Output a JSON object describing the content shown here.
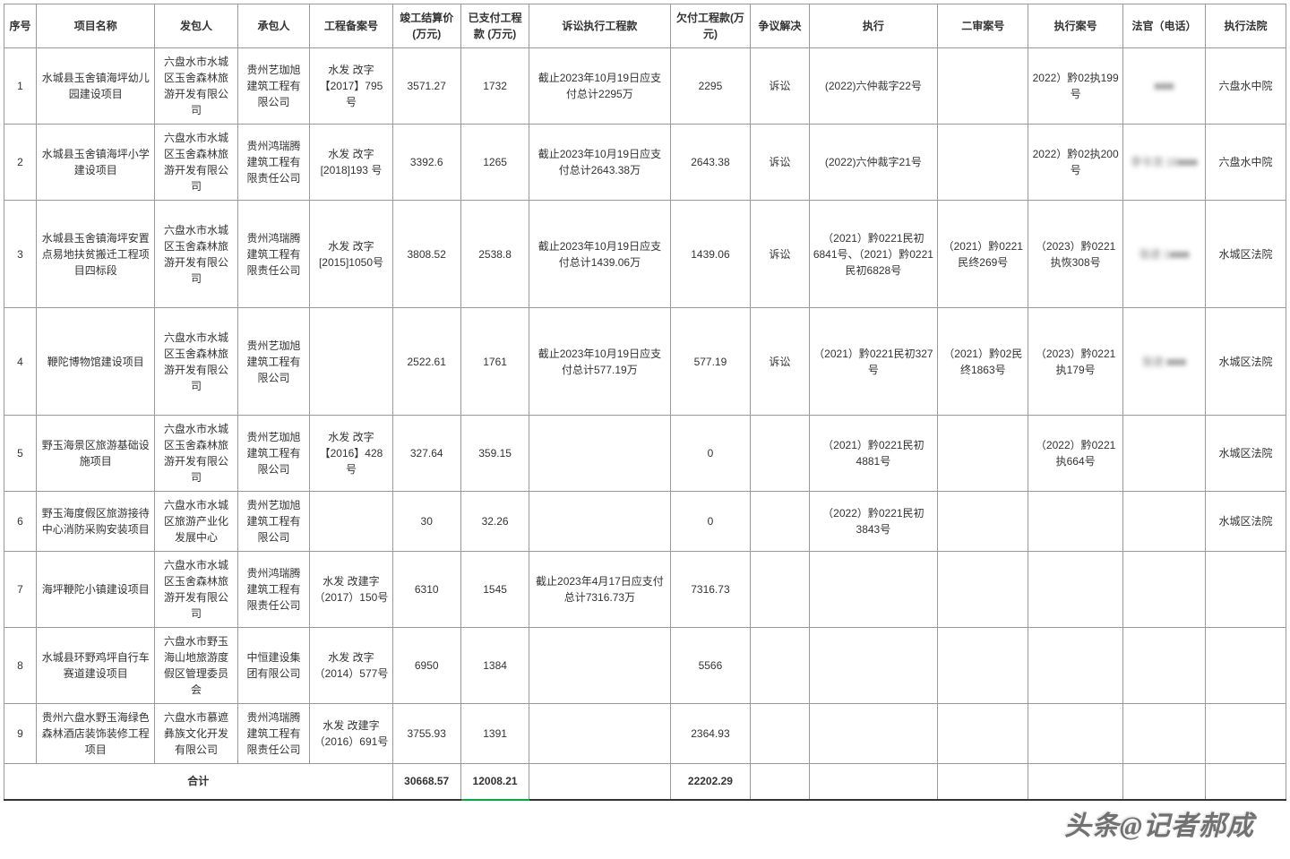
{
  "table": {
    "columns": [
      "序号",
      "项目名称",
      "发包人",
      "承包人",
      "工程备案号",
      "竣工结算价 (万元)",
      "已支付工程款 (万元)",
      "诉讼执行工程款",
      "欠付工程款(万元)",
      "争议解决",
      "执行",
      "二审案号",
      "执行案号",
      "法官（电话）",
      "执行法院"
    ],
    "rows": [
      {
        "h": "med-row",
        "seq": "1",
        "project": "水城县玉舍镇海坪幼儿园建设项目",
        "owner": "六盘水市水城区玉舍森林旅游开发有限公司",
        "contractor": "贵州艺珈旭建筑工程有限公司",
        "fileno": "水发 改字【2017】795 号",
        "settle": "3571.27",
        "paid": "1732",
        "lawsuit": "截止2023年10月19日应支付总计2295万",
        "owed": "2295",
        "dispute": "诉讼",
        "exec": "(2022)六仲裁字22号",
        "appeal": "",
        "execno": "2022）黔02执199号",
        "judge": "■■■",
        "court": "六盘水中院"
      },
      {
        "h": "med-row",
        "seq": "2",
        "project": "水城县玉舍镇海坪小学建设项目",
        "owner": "六盘水市水城区玉舍森林旅游开发有限公司",
        "contractor": "贵州鸿瑞腾建筑工程有限责任公司",
        "fileno": "水发 改字[2018]193 号",
        "settle": "3392.6",
        "paid": "1265",
        "lawsuit": "截止2023年10月19日应支付总计2643.38万",
        "owed": "2643.38",
        "dispute": "诉讼",
        "exec": "(2022)六仲裁字21号",
        "appeal": "",
        "execno": "2022）黔02执200号",
        "judge": "李令流 18■■■",
        "court": "六盘水中院"
      },
      {
        "h": "tall-row",
        "seq": "3",
        "project": "水城县玉舍镇海坪安置点易地扶贫搬迁工程项目四标段",
        "owner": "六盘水市水城区玉舍森林旅游开发有限公司",
        "contractor": "贵州鸿瑞腾建筑工程有限责任公司",
        "fileno": "水发 改字[2015]1050号",
        "settle": "3808.52",
        "paid": "2538.8",
        "lawsuit": "截止2023年10月19日应支付总计1439.06万",
        "owed": "1439.06",
        "dispute": "诉讼",
        "exec": "（2021）黔0221民初6841号、（2021）黔0221民初6828号",
        "appeal": "（2021）黔0221民终269号",
        "execno": "（2023）黔0221执恢308号",
        "judge": "张进 1■■■",
        "court": "水城区法院"
      },
      {
        "h": "tall-row",
        "seq": "4",
        "project": "鞭陀博物馆建设项目",
        "owner": "六盘水市水城区玉舍森林旅游开发有限公司",
        "contractor": "贵州艺珈旭建筑工程有限公司",
        "fileno": "",
        "settle": "2522.61",
        "paid": "1761",
        "lawsuit": "截止2023年10月19日应支付总计577.19万",
        "owed": "577.19",
        "dispute": "诉讼",
        "exec": "（2021）黔0221民初327号",
        "appeal": "（2021）黔02民终1863号",
        "execno": "（2023）黔0221执179号",
        "judge": "张进 ■■■",
        "court": "水城区法院"
      },
      {
        "h": "med-row",
        "seq": "5",
        "project": "野玉海景区旅游基础设施项目",
        "owner": "六盘水市水城区玉舍森林旅游开发有限公司",
        "contractor": "贵州艺珈旭建筑工程有限公司",
        "fileno": "水发 改字【2016】428 号",
        "settle": "327.64",
        "paid": "359.15",
        "lawsuit": "",
        "owed": "0",
        "dispute": "",
        "exec": "（2021）黔0221民初 4881号",
        "appeal": "",
        "execno": "（2022）黔0221 执664号",
        "judge": "",
        "court": "水城区法院"
      },
      {
        "h": "short-row",
        "seq": "6",
        "project": "野玉海度假区旅游接待中心消防采购安装项目",
        "owner": "六盘水市水城区旅游产业化发展中心",
        "contractor": "贵州艺珈旭建筑工程有限公司",
        "fileno": "",
        "settle": "30",
        "paid": "32.26",
        "lawsuit": "",
        "owed": "0",
        "dispute": "",
        "exec": "（2022）黔0221民初3843号",
        "appeal": "",
        "execno": "",
        "judge": "",
        "court": "水城区法院"
      },
      {
        "h": "med-row",
        "seq": "7",
        "project": "海坪鞭陀小镇建设项目",
        "owner": "六盘水市水城区玉舍森林旅游开发有限公司",
        "contractor": "贵州鸿瑞腾建筑工程有限责任公司",
        "fileno": "水发 改建字（2017）150号",
        "settle": "6310",
        "paid": "1545",
        "lawsuit": "截止2023年4月17日应支付总计7316.73万",
        "owed": "7316.73",
        "dispute": "",
        "exec": "",
        "appeal": "",
        "execno": "",
        "judge": "",
        "court": ""
      },
      {
        "h": "short-row",
        "seq": "8",
        "project": "水城县环野鸡坪自行车赛道建设项目",
        "owner": "六盘水市野玉海山地旅游度假区管理委员会",
        "contractor": "中恒建设集团有限公司",
        "fileno": "水发 改字（2014）577号",
        "settle": "6950",
        "paid": "1384",
        "lawsuit": "",
        "owed": "5566",
        "dispute": "",
        "exec": "",
        "appeal": "",
        "execno": "",
        "judge": "",
        "court": ""
      },
      {
        "h": "short-row",
        "seq": "9",
        "project": "贵州六盘水野玉海绿色森林酒店装饰装修工程项目",
        "owner": "六盘水市慕遮彝族文化开发有限公司",
        "contractor": "贵州鸿瑞腾建筑工程有限责任公司",
        "fileno": "水发 改建字（2016）691号",
        "settle": "3755.93",
        "paid": "1391",
        "lawsuit": "",
        "owed": "2364.93",
        "dispute": "",
        "exec": "",
        "appeal": "",
        "execno": "",
        "judge": "",
        "court": ""
      }
    ],
    "totals": {
      "label": "合计",
      "settle": "30668.57",
      "paid": "12008.21",
      "owed": "22202.29"
    }
  },
  "watermark": "头条@记者郝成",
  "style": {
    "border_color": "#999999",
    "text_color": "#333333",
    "font_size": 12,
    "background": "#ffffff"
  }
}
